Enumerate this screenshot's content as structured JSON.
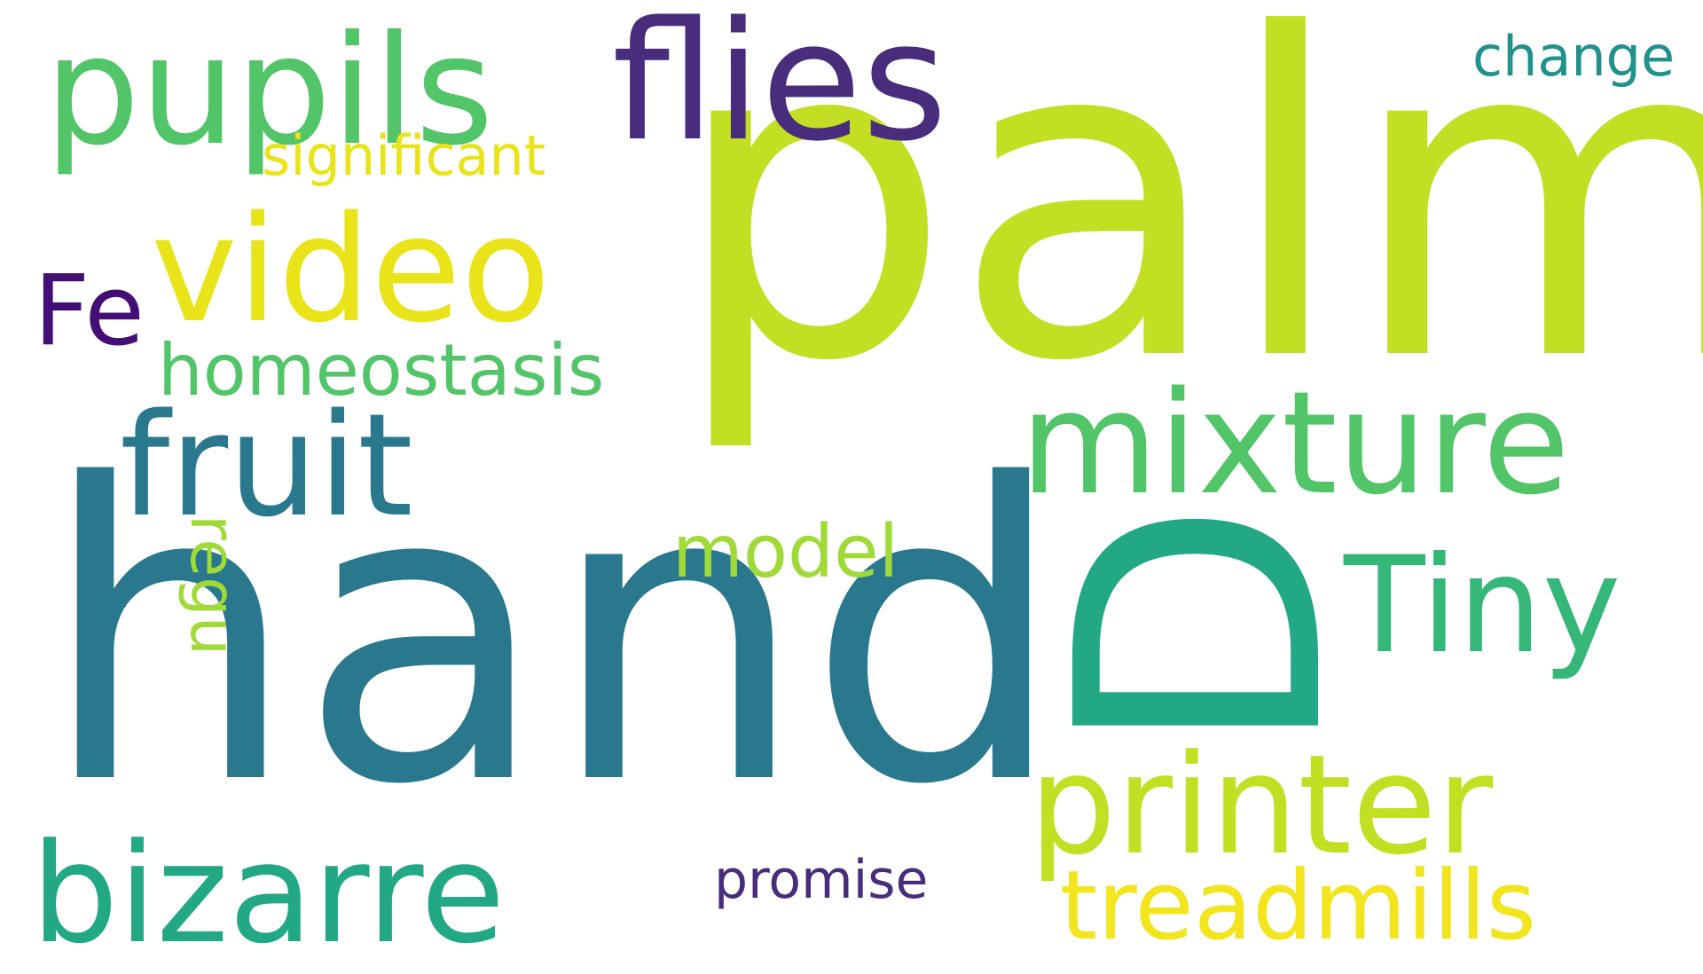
{
  "words": [
    {
      "key": "palm",
      "text": "palm",
      "color": "#c2df23"
    },
    {
      "key": "hand",
      "text": "hand",
      "color": "#2a788e"
    },
    {
      "key": "D",
      "text": "D",
      "color": "#22a884"
    },
    {
      "key": "pupils",
      "text": "pupils",
      "color": "#52c569"
    },
    {
      "key": "flies",
      "text": "flies",
      "color": "#472d7b"
    },
    {
      "key": "video",
      "text": "video",
      "color": "#e8e419"
    },
    {
      "key": "fruit",
      "text": "fruit",
      "color": "#2a788e"
    },
    {
      "key": "mixture",
      "text": "mixture",
      "color": "#52c569"
    },
    {
      "key": "printer",
      "text": "printer",
      "color": "#c2df23"
    },
    {
      "key": "Tiny",
      "text": "Tiny",
      "color": "#35b779"
    },
    {
      "key": "bizarre",
      "text": "bizarre",
      "color": "#22a884"
    },
    {
      "key": "treadmills",
      "text": "treadmills",
      "color": "#f2e51d"
    },
    {
      "key": "homeostasis",
      "text": "homeostasis",
      "color": "#52c569"
    },
    {
      "key": "significant",
      "text": "significant",
      "color": "#e8e419"
    },
    {
      "key": "Fe",
      "text": "Fe",
      "color": "#440f75"
    },
    {
      "key": "change",
      "text": "change",
      "color": "#21918c"
    },
    {
      "key": "model",
      "text": "model",
      "color": "#a0da39"
    },
    {
      "key": "promise",
      "text": "promise",
      "color": "#472d7b"
    },
    {
      "key": "regu",
      "text": "regu",
      "color": "#a0da39"
    }
  ]
}
